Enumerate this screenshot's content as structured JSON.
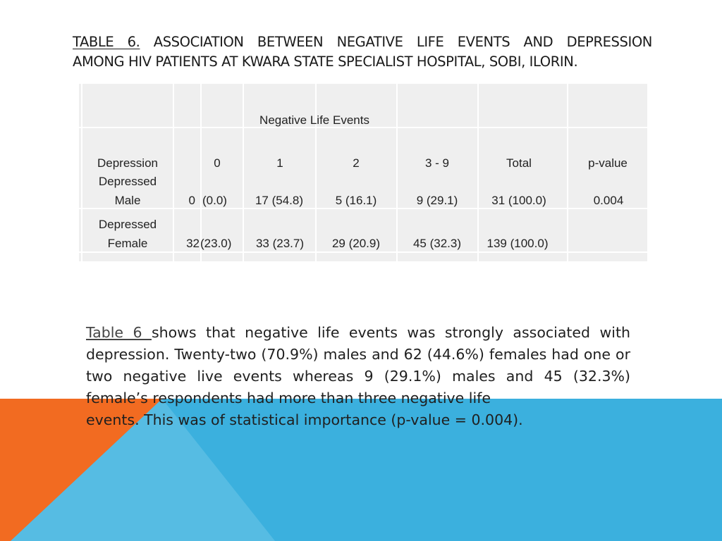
{
  "title": {
    "lead": "Table 6.",
    "line1_rest": "Association between negative life events and depression",
    "line2": "among HIV patients at Kwara State Specialist Hospital, Sobi, Ilorin."
  },
  "table": {
    "group_header": "Negative Life Events",
    "columns": [
      "Depression",
      "0",
      "1",
      "2",
      "3 - 9",
      "Total",
      "p-value"
    ],
    "rows": [
      {
        "label_line1": "Depressed",
        "label_line2": "Male",
        "n0": "0",
        "p0": "(0.0)",
        "c1": "17 (54.8)",
        "c2": "5 (16.1)",
        "c3": "9 (29.1)",
        "total": "31 (100.0)",
        "pvalue": "0.004"
      },
      {
        "label_line1": "Depressed",
        "label_line2": "Female",
        "n0": "32",
        "p0": "(23.0)",
        "c1": "33 (23.7)",
        "c2": "29 (20.9)",
        "c3": "45 (32.3)",
        "total": "139 (100.0)",
        "pvalue": ""
      }
    ]
  },
  "paragraph": {
    "ref": " Table 6 ",
    "text": "shows that negative life events was strongly associated with depression. Twenty-two (70.9%) males and 62 (44.6%) females had one or two negative live events whereas 9 (29.1%) males and 45 (32.3%) female’s respondents had more than three negative life",
    "last_line": "events. This was of statistical importance (p-value = 0.004)."
  },
  "colors": {
    "orange": "#F26B21",
    "blue": "#3BB0DE",
    "table_bg": "#EFEFEF"
  }
}
